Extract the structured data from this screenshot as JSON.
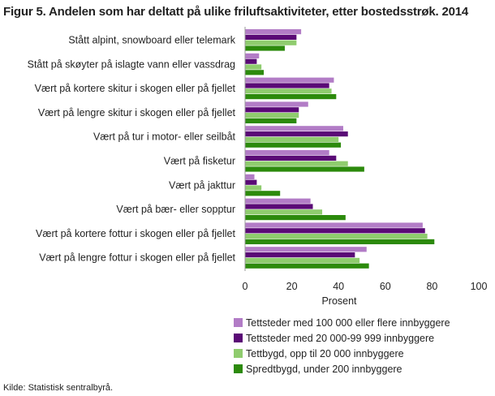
{
  "figure": {
    "title": "Figur 5. Andelen som har deltatt på ulike friluftsaktiviteter, etter bostedsstrøk. 2014",
    "source": "Kilde: Statistisk sentralbyrå."
  },
  "chart_data": {
    "type": "bar",
    "orientation": "horizontal",
    "categories": [
      "Stått alpint, snowboard eller telemark",
      "Stått på skøyter på islagte vann eller vassdrag",
      "Vært på kortere skitur i skogen eller på fjellet",
      "Vært på lengre skitur i skogen eller på fjellet",
      "Vært på tur i motor- eller seilbåt",
      "Vært på fisketur",
      "Vært på jakttur",
      "Vært på bær- eller sopptur",
      "Vært på kortere fottur i skogen eller på fjellet",
      "Vært på lengre fottur i skogen eller på fjellet"
    ],
    "series": [
      {
        "name": "Tettsteder med 100 000 eller flere innbyggere",
        "color": "#b27cc6",
        "values": [
          24,
          6,
          38,
          27,
          42,
          36,
          4,
          28,
          76,
          52
        ]
      },
      {
        "name": "Tettsteder med 20 000-99 999 innbyggere",
        "color": "#5a0a76",
        "values": [
          22,
          5,
          36,
          23,
          44,
          39,
          5,
          29,
          77,
          47
        ]
      },
      {
        "name": "Tettbygd, opp til 20 000 innbyggere",
        "color": "#8fcc6e",
        "values": [
          22,
          7,
          37,
          23,
          40,
          44,
          7,
          33,
          78,
          49
        ]
      },
      {
        "name": "Spredtbygd, under 200 innbyggere",
        "color": "#2c8a0c",
        "values": [
          17,
          8,
          39,
          22,
          41,
          51,
          15,
          43,
          81,
          53
        ]
      }
    ],
    "xlabel": "Prosent",
    "xlim": [
      0,
      100
    ],
    "xticks": [
      0,
      20,
      40,
      60,
      80,
      100
    ],
    "grid": false,
    "legend_position": "bottom-right"
  }
}
